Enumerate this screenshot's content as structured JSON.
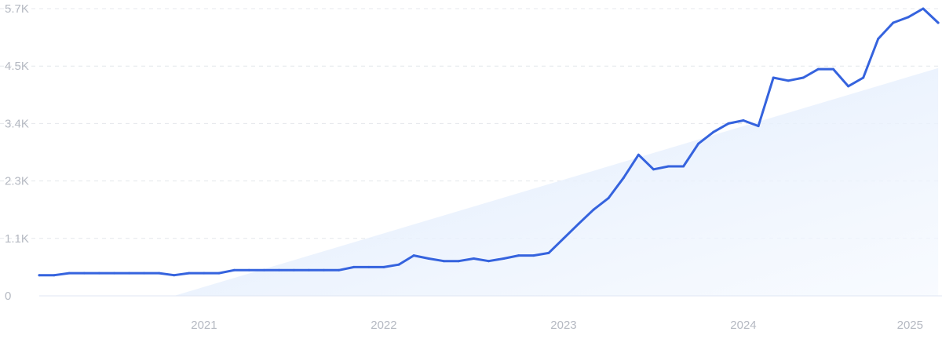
{
  "chart_data": {
    "type": "line",
    "title": "",
    "xlabel": "",
    "ylabel": "",
    "x_tick_labels": [
      "2021",
      "2022",
      "2023",
      "2024",
      "2025"
    ],
    "x_ticks": [
      "2021-01",
      "2022-01",
      "2023-01",
      "2024-01",
      "2025-01"
    ],
    "y_tick_labels": [
      "0",
      "1.1K",
      "2.3K",
      "3.4K",
      "4.5K",
      "5.7K"
    ],
    "y_ticks": [
      0,
      1140,
      2280,
      3420,
      4560,
      5700
    ],
    "ylim": [
      0,
      5700
    ],
    "xlim": [
      "2020-02",
      "2025-01"
    ],
    "grid": true,
    "legend": "none",
    "line_color": "#3563de",
    "trend_fill_color": "#dbe8fb",
    "series": [
      {
        "name": "",
        "points": [
          [
            "2020-02",
            410
          ],
          [
            "2020-03",
            410
          ],
          [
            "2020-04",
            450
          ],
          [
            "2020-05",
            450
          ],
          [
            "2020-06",
            450
          ],
          [
            "2020-07",
            450
          ],
          [
            "2020-08",
            450
          ],
          [
            "2020-09",
            450
          ],
          [
            "2020-10",
            450
          ],
          [
            "2020-11",
            410
          ],
          [
            "2020-12",
            450
          ],
          [
            "2021-01",
            450
          ],
          [
            "2021-02",
            450
          ],
          [
            "2021-03",
            510
          ],
          [
            "2021-04",
            510
          ],
          [
            "2021-05",
            510
          ],
          [
            "2021-06",
            510
          ],
          [
            "2021-07",
            510
          ],
          [
            "2021-08",
            510
          ],
          [
            "2021-09",
            510
          ],
          [
            "2021-10",
            510
          ],
          [
            "2021-11",
            570
          ],
          [
            "2021-12",
            570
          ],
          [
            "2022-01",
            570
          ],
          [
            "2022-02",
            620
          ],
          [
            "2022-03",
            800
          ],
          [
            "2022-04",
            740
          ],
          [
            "2022-05",
            690
          ],
          [
            "2022-06",
            690
          ],
          [
            "2022-07",
            740
          ],
          [
            "2022-08",
            690
          ],
          [
            "2022-09",
            740
          ],
          [
            "2022-10",
            800
          ],
          [
            "2022-11",
            800
          ],
          [
            "2022-12",
            850
          ],
          [
            "2023-01",
            1140
          ],
          [
            "2023-02",
            1430
          ],
          [
            "2023-03",
            1710
          ],
          [
            "2023-04",
            1940
          ],
          [
            "2023-05",
            2340
          ],
          [
            "2023-06",
            2800
          ],
          [
            "2023-07",
            2510
          ],
          [
            "2023-08",
            2570
          ],
          [
            "2023-09",
            2570
          ],
          [
            "2023-10",
            3020
          ],
          [
            "2023-11",
            3250
          ],
          [
            "2023-12",
            3420
          ],
          [
            "2024-01",
            3480
          ],
          [
            "2024-02",
            3370
          ],
          [
            "2024-03",
            4330
          ],
          [
            "2024-04",
            4270
          ],
          [
            "2024-05",
            4330
          ],
          [
            "2024-06",
            4500
          ],
          [
            "2024-07",
            4500
          ],
          [
            "2024-08",
            4160
          ],
          [
            "2024-09",
            4330
          ],
          [
            "2024-10",
            5100
          ],
          [
            "2024-11",
            5420
          ],
          [
            "2024-12",
            5530
          ],
          [
            "2025-01",
            5700
          ],
          [
            "2025-02",
            5420
          ]
        ]
      }
    ],
    "trend": {
      "start": [
        "2020-11",
        0
      ],
      "end": [
        "2025-02",
        4520
      ]
    }
  }
}
